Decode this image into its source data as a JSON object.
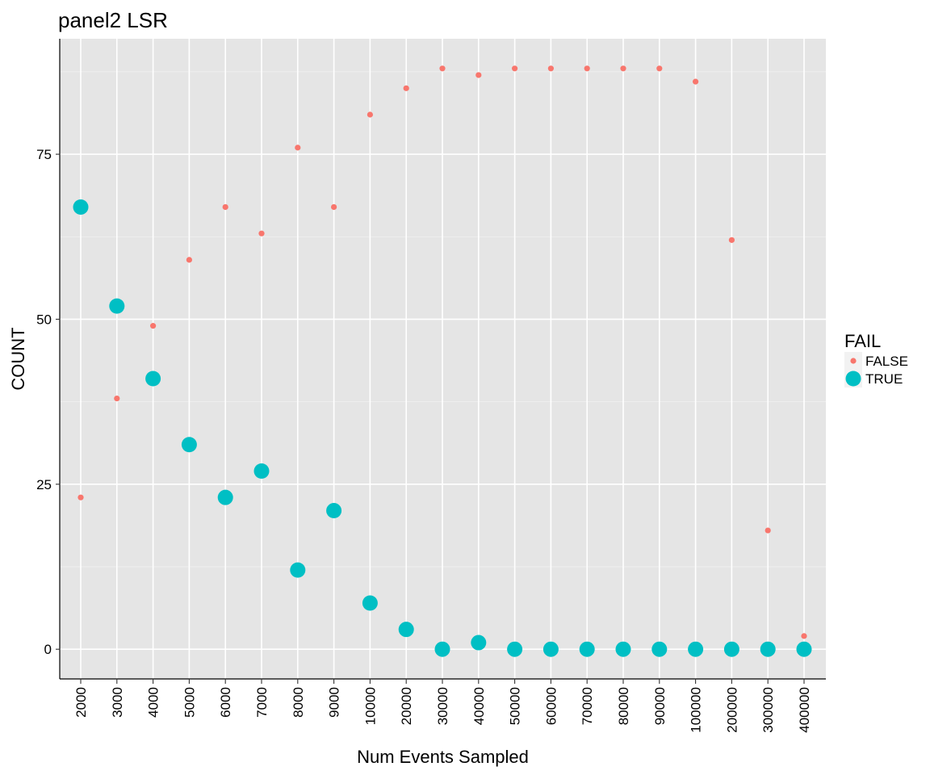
{
  "chart_data": {
    "type": "scatter",
    "title": "panel2 LSR",
    "xlabel": "Num Events Sampled",
    "ylabel": "COUNT",
    "ylim": [
      -4.5,
      92.5
    ],
    "yticks": [
      0,
      25,
      50,
      75
    ],
    "grid": true,
    "categories": [
      "2000",
      "3000",
      "4000",
      "5000",
      "6000",
      "7000",
      "8000",
      "9000",
      "10000",
      "20000",
      "30000",
      "40000",
      "50000",
      "60000",
      "70000",
      "80000",
      "90000",
      "100000",
      "200000",
      "300000",
      "400000"
    ],
    "series": [
      {
        "name": "FALSE",
        "color": "#F8766D",
        "size": "small",
        "values": [
          23,
          38,
          49,
          59,
          67,
          63,
          76,
          67,
          81,
          85,
          88,
          87,
          88,
          88,
          88,
          88,
          88,
          86,
          62,
          18,
          2
        ]
      },
      {
        "name": "TRUE",
        "color": "#00BFC4",
        "size": "large",
        "values": [
          67,
          52,
          41,
          31,
          23,
          27,
          12,
          21,
          7,
          3,
          0,
          1,
          0,
          0,
          0,
          0,
          0,
          0,
          0,
          0,
          0
        ]
      }
    ],
    "legend": {
      "title": "FAIL",
      "entries": [
        "FALSE",
        "TRUE"
      ],
      "position": "right"
    }
  }
}
